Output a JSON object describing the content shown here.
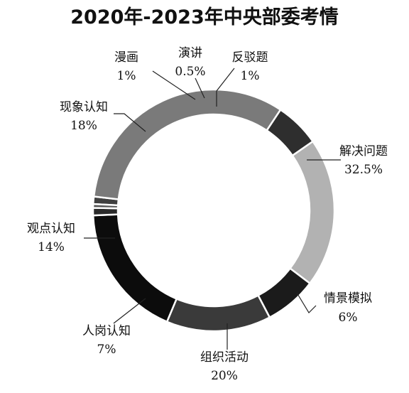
{
  "chart_data": {
    "type": "pie",
    "title": "2020年-2023年中央部委考情",
    "slices": [
      {
        "label": "反驳题",
        "value": 1,
        "value_label": "1%",
        "color": "#404040"
      },
      {
        "label": "解决问题",
        "value": 32.5,
        "value_label": "32.5%",
        "color": "#7a7a7a"
      },
      {
        "label": "情景模拟",
        "value": 6,
        "value_label": "6%",
        "color": "#2e2e2e"
      },
      {
        "label": "组织活动",
        "value": 20,
        "value_label": "20%",
        "color": "#b2b2b2"
      },
      {
        "label": "人岗认知",
        "value": 7,
        "value_label": "7%",
        "color": "#1b1b1b"
      },
      {
        "label": "观点认知",
        "value": 14,
        "value_label": "14%",
        "color": "#3a3a3a"
      },
      {
        "label": "现象认知",
        "value": 18,
        "value_label": "18%",
        "color": "#0c0c0c"
      },
      {
        "label": "漫画",
        "value": 1,
        "value_label": "1%",
        "color": "#2a2a2a"
      },
      {
        "label": "演讲",
        "value": 0.5,
        "value_label": "0.5%",
        "color": "#555555"
      }
    ],
    "legend": "none"
  }
}
